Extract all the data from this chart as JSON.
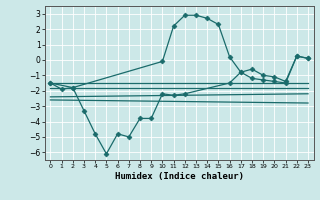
{
  "xlabel": "Humidex (Indice chaleur)",
  "background_color": "#cce8e8",
  "line_color": "#1a6b6b",
  "xlim": [
    -0.5,
    23.5
  ],
  "ylim": [
    -6.5,
    3.5
  ],
  "yticks": [
    3,
    2,
    1,
    0,
    -1,
    -2,
    -3,
    -4,
    -5,
    -6
  ],
  "xticks": [
    0,
    1,
    2,
    3,
    4,
    5,
    6,
    7,
    8,
    9,
    10,
    11,
    12,
    13,
    14,
    15,
    16,
    17,
    18,
    19,
    20,
    21,
    22,
    23
  ],
  "series": [
    {
      "x": [
        0,
        1,
        2,
        10,
        11,
        12,
        13,
        14,
        15,
        16,
        17,
        18,
        19,
        20,
        21,
        22,
        23
      ],
      "y": [
        -1.5,
        -1.9,
        -1.8,
        -0.1,
        2.2,
        2.9,
        2.9,
        2.7,
        2.3,
        0.2,
        -0.8,
        -0.6,
        -1.0,
        -1.1,
        -1.4,
        0.25,
        0.1
      ],
      "marker": true
    },
    {
      "x": [
        0,
        2,
        3,
        4,
        5,
        6,
        7,
        8,
        9,
        10,
        11,
        12,
        16,
        17,
        18,
        19,
        20,
        21,
        22,
        23
      ],
      "y": [
        -1.5,
        -1.8,
        -3.3,
        -4.8,
        -6.1,
        -4.8,
        -5.0,
        -3.8,
        -3.8,
        -2.2,
        -2.3,
        -2.2,
        -1.5,
        -0.8,
        -1.2,
        -1.3,
        -1.4,
        -1.5,
        0.25,
        0.1
      ],
      "marker": true
    },
    {
      "x": [
        0,
        23
      ],
      "y": [
        -1.5,
        -1.5
      ],
      "marker": false
    },
    {
      "x": [
        0,
        23
      ],
      "y": [
        -1.8,
        -1.8
      ],
      "marker": false
    },
    {
      "x": [
        0,
        23
      ],
      "y": [
        -2.4,
        -2.2
      ],
      "marker": false
    },
    {
      "x": [
        0,
        23
      ],
      "y": [
        -2.6,
        -2.8
      ],
      "marker": false
    }
  ]
}
